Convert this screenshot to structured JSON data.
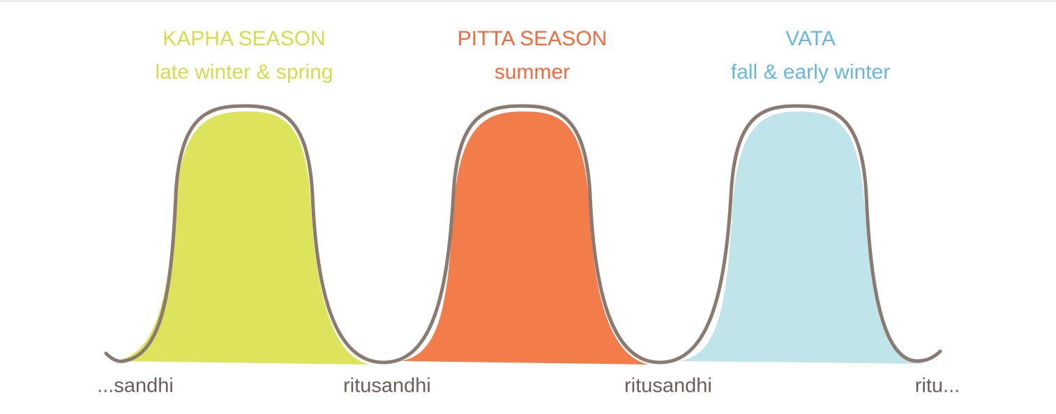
{
  "seasons": [
    {
      "title": "KAPHA SEASON",
      "subtitle": "late winter & spring"
    },
    {
      "title": "PITTA SEASON",
      "subtitle": "summer"
    },
    {
      "title": "VATA",
      "subtitle": "fall & early winter"
    }
  ],
  "transitions": [
    "...sandhi",
    "ritusandhi",
    "ritusandhi",
    "ritu..."
  ]
}
